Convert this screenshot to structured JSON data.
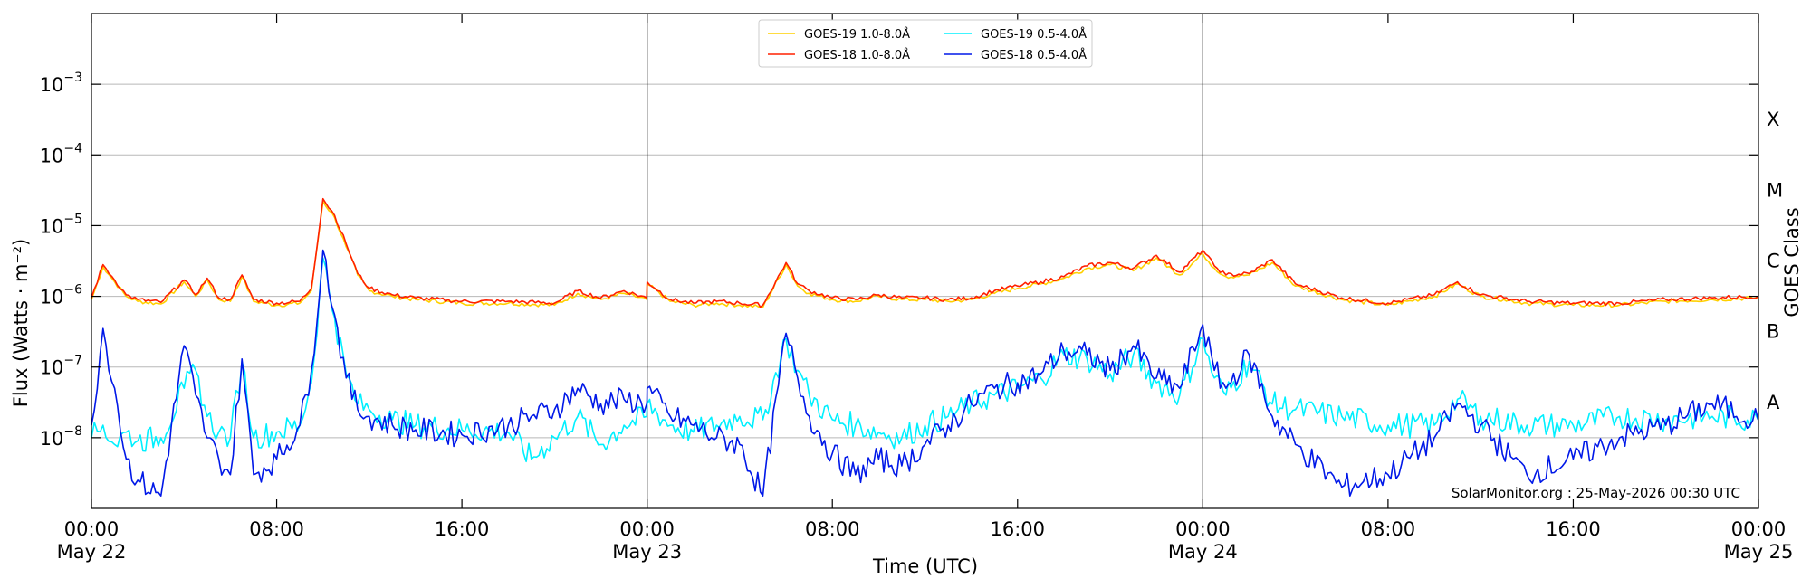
{
  "chart_data": {
    "type": "line",
    "xlabel": "Time (UTC)",
    "ylabel": "Flux (Watts · m⁻²)",
    "y2label": "GOES Class",
    "yscale": "log",
    "ylim": [
      1e-09,
      0.01
    ],
    "xlim": [
      "2026-05-22 00:00",
      "2026-05-25 00:00"
    ],
    "grid": "horizontal",
    "legend_position": "top-center",
    "credit": "SolarMonitor.org : 25-May-2026 00:30 UTC",
    "day_boundaries": [
      "2026-05-23 00:00",
      "2026-05-24 00:00"
    ],
    "y_ticks": [
      {
        "value": 1e-08,
        "base": "10",
        "exp": "−8"
      },
      {
        "value": 1e-07,
        "base": "10",
        "exp": "−7"
      },
      {
        "value": 1e-06,
        "base": "10",
        "exp": "−6"
      },
      {
        "value": 1e-05,
        "base": "10",
        "exp": "−5"
      },
      {
        "value": 0.0001,
        "base": "10",
        "exp": "−4"
      },
      {
        "value": 0.001,
        "base": "10",
        "exp": "−3"
      }
    ],
    "x_ticks": [
      {
        "time": "2026-05-22 00:00",
        "label1": "00:00",
        "label2": "May 22"
      },
      {
        "time": "2026-05-22 08:00",
        "label1": "08:00",
        "label2": ""
      },
      {
        "time": "2026-05-22 16:00",
        "label1": "16:00",
        "label2": ""
      },
      {
        "time": "2026-05-23 00:00",
        "label1": "00:00",
        "label2": "May 23"
      },
      {
        "time": "2026-05-23 08:00",
        "label1": "08:00",
        "label2": ""
      },
      {
        "time": "2026-05-23 16:00",
        "label1": "16:00",
        "label2": ""
      },
      {
        "time": "2026-05-24 00:00",
        "label1": "00:00",
        "label2": "May 24"
      },
      {
        "time": "2026-05-24 08:00",
        "label1": "08:00",
        "label2": ""
      },
      {
        "time": "2026-05-24 16:00",
        "label1": "16:00",
        "label2": ""
      },
      {
        "time": "2026-05-25 00:00",
        "label1": "00:00",
        "label2": "May 25"
      }
    ],
    "class_labels": [
      {
        "label": "A",
        "value": 3.16e-08
      },
      {
        "label": "B",
        "value": 3.16e-07
      },
      {
        "label": "C",
        "value": 3.16e-06
      },
      {
        "label": "M",
        "value": 3.16e-05
      },
      {
        "label": "X",
        "value": 0.000316
      }
    ],
    "series": [
      {
        "name": "GOES-19 1.0-8.0Å",
        "color": "#ffd000",
        "x": [
          "2026-05-22 00:00",
          "2026-05-22 00:30",
          "2026-05-22 01:00",
          "2026-05-22 01:30",
          "2026-05-22 02:00",
          "2026-05-22 03:00",
          "2026-05-22 04:00",
          "2026-05-22 04:30",
          "2026-05-22 05:00",
          "2026-05-22 05:30",
          "2026-05-22 06:00",
          "2026-05-22 06:30",
          "2026-05-22 07:00",
          "2026-05-22 08:00",
          "2026-05-22 09:00",
          "2026-05-22 09:30",
          "2026-05-22 10:00",
          "2026-05-22 10:30",
          "2026-05-22 11:00",
          "2026-05-22 11:30",
          "2026-05-22 12:00",
          "2026-05-22 13:00",
          "2026-05-22 14:00",
          "2026-05-22 16:00",
          "2026-05-22 18:00",
          "2026-05-22 20:00",
          "2026-05-22 21:00",
          "2026-05-22 22:00",
          "2026-05-22 23:00",
          "2026-05-22 23:59",
          "2026-05-23 00:00",
          "2026-05-23 01:00",
          "2026-05-23 02:00",
          "2026-05-23 03:00",
          "2026-05-23 04:00",
          "2026-05-23 05:00",
          "2026-05-23 06:00",
          "2026-05-23 06:30",
          "2026-05-23 07:00",
          "2026-05-23 08:00",
          "2026-05-23 09:00",
          "2026-05-23 10:00",
          "2026-05-23 11:00",
          "2026-05-23 12:00",
          "2026-05-23 13:00",
          "2026-05-23 14:00",
          "2026-05-23 15:00",
          "2026-05-23 16:00",
          "2026-05-23 17:00",
          "2026-05-23 18:00",
          "2026-05-23 19:00",
          "2026-05-23 20:00",
          "2026-05-23 21:00",
          "2026-05-23 22:00",
          "2026-05-23 23:00",
          "2026-05-24 00:00",
          "2026-05-24 00:30",
          "2026-05-24 01:00",
          "2026-05-24 02:00",
          "2026-05-24 03:00",
          "2026-05-24 04:00",
          "2026-05-24 06:00",
          "2026-05-24 08:00",
          "2026-05-24 10:00",
          "2026-05-24 11:00",
          "2026-05-24 12:00",
          "2026-05-24 13:00",
          "2026-05-24 14:00",
          "2026-05-24 16:00",
          "2026-05-24 18:00",
          "2026-05-24 20:00",
          "2026-05-24 22:00",
          "2026-05-24 23:59"
        ],
        "y": [
          9e-07,
          2.6e-06,
          1.6e-06,
          1e-06,
          8.5e-07,
          7.8e-07,
          1.6e-06,
          1e-06,
          1.7e-06,
          9e-07,
          8.5e-07,
          1.9e-06,
          8.5e-07,
          7.5e-07,
          8e-07,
          1.2e-06,
          2.2e-05,
          1.3e-05,
          5e-06,
          2e-06,
          1.2e-06,
          1e-06,
          9e-07,
          8e-07,
          8e-07,
          7.5e-07,
          1.1e-06,
          9e-07,
          1.1e-06,
          9e-07,
          1.5e-06,
          8.5e-07,
          7.5e-07,
          8e-07,
          7.5e-07,
          7e-07,
          2.8e-06,
          1.4e-06,
          1.1e-06,
          9e-07,
          8.5e-07,
          1e-06,
          9e-07,
          9e-07,
          8.5e-07,
          9e-07,
          1.1e-06,
          1.3e-06,
          1.5e-06,
          1.8e-06,
          2.5e-06,
          2.8e-06,
          2.3e-06,
          3.5e-06,
          2e-06,
          4e-06,
          2.5e-06,
          1.9e-06,
          2e-06,
          3e-06,
          1.4e-06,
          9e-07,
          7.5e-07,
          1e-06,
          1.5e-06,
          1e-06,
          9e-07,
          8e-07,
          7.5e-07,
          7.5e-07,
          8.5e-07,
          9e-07,
          9.5e-07
        ]
      },
      {
        "name": "GOES-18 1.0-8.0Å",
        "color": "#ff2000",
        "x": [
          "2026-05-22 00:00",
          "2026-05-22 00:30",
          "2026-05-22 01:00",
          "2026-05-22 01:30",
          "2026-05-22 02:00",
          "2026-05-22 03:00",
          "2026-05-22 04:00",
          "2026-05-22 04:30",
          "2026-05-22 05:00",
          "2026-05-22 05:30",
          "2026-05-22 06:00",
          "2026-05-22 06:30",
          "2026-05-22 07:00",
          "2026-05-22 08:00",
          "2026-05-22 09:00",
          "2026-05-22 09:30",
          "2026-05-22 10:00",
          "2026-05-22 10:30",
          "2026-05-22 11:00",
          "2026-05-22 11:30",
          "2026-05-22 12:00",
          "2026-05-22 13:00",
          "2026-05-22 14:00",
          "2026-05-22 16:00",
          "2026-05-22 18:00",
          "2026-05-22 20:00",
          "2026-05-22 21:00",
          "2026-05-22 22:00",
          "2026-05-22 23:00",
          "2026-05-22 23:59",
          "2026-05-23 00:00",
          "2026-05-23 01:00",
          "2026-05-23 02:00",
          "2026-05-23 03:00",
          "2026-05-23 04:00",
          "2026-05-23 05:00",
          "2026-05-23 06:00",
          "2026-05-23 06:30",
          "2026-05-23 07:00",
          "2026-05-23 08:00",
          "2026-05-23 09:00",
          "2026-05-23 10:00",
          "2026-05-23 11:00",
          "2026-05-23 12:00",
          "2026-05-23 13:00",
          "2026-05-23 14:00",
          "2026-05-23 15:00",
          "2026-05-23 16:00",
          "2026-05-23 17:00",
          "2026-05-23 18:00",
          "2026-05-23 19:00",
          "2026-05-23 20:00",
          "2026-05-23 21:00",
          "2026-05-23 22:00",
          "2026-05-23 23:00",
          "2026-05-24 00:00",
          "2026-05-24 00:30",
          "2026-05-24 01:00",
          "2026-05-24 02:00",
          "2026-05-24 03:00",
          "2026-05-24 04:00",
          "2026-05-24 06:00",
          "2026-05-24 08:00",
          "2026-05-24 10:00",
          "2026-05-24 11:00",
          "2026-05-24 12:00",
          "2026-05-24 13:00",
          "2026-05-24 14:00",
          "2026-05-24 16:00",
          "2026-05-24 18:00",
          "2026-05-24 20:00",
          "2026-05-24 22:00",
          "2026-05-24 23:59"
        ],
        "y": [
          9.5e-07,
          2.8e-06,
          1.7e-06,
          1.05e-06,
          9e-07,
          8.2e-07,
          1.7e-06,
          1.05e-06,
          1.8e-06,
          9.5e-07,
          9e-07,
          2e-06,
          9e-07,
          8e-07,
          8.5e-07,
          1.3e-06,
          2.4e-05,
          1.4e-05,
          5.5e-06,
          2.1e-06,
          1.3e-06,
          1.05e-06,
          9.5e-07,
          8.5e-07,
          8.5e-07,
          8e-07,
          1.2e-06,
          9.5e-07,
          1.2e-06,
          9.5e-07,
          1.6e-06,
          9e-07,
          8e-07,
          8.5e-07,
          8e-07,
          7.5e-07,
          3e-06,
          1.5e-06,
          1.2e-06,
          9.5e-07,
          9e-07,
          1.05e-06,
          9.5e-07,
          9.5e-07,
          9e-07,
          9.5e-07,
          1.2e-06,
          1.4e-06,
          1.6e-06,
          1.9e-06,
          2.7e-06,
          3e-06,
          2.5e-06,
          3.8e-06,
          2.2e-06,
          4.5e-06,
          2.7e-06,
          2e-06,
          2.1e-06,
          3.3e-06,
          1.5e-06,
          9.5e-07,
          8e-07,
          1.05e-06,
          1.6e-06,
          1.05e-06,
          9.5e-07,
          8.5e-07,
          8e-07,
          8e-07,
          9e-07,
          9.5e-07,
          1e-06
        ]
      },
      {
        "name": "GOES-19 0.5-4.0Å",
        "color": "#00f0ff",
        "x": [
          "2026-05-22 00:00",
          "2026-05-22 00:30",
          "2026-05-22 01:00",
          "2026-05-22 01:30",
          "2026-05-22 02:00",
          "2026-05-22 03:00",
          "2026-05-22 04:00",
          "2026-05-22 04:30",
          "2026-05-22 05:00",
          "2026-05-22 05:30",
          "2026-05-22 06:00",
          "2026-05-22 06:30",
          "2026-05-22 07:00",
          "2026-05-22 08:00",
          "2026-05-22 09:00",
          "2026-05-22 09:30",
          "2026-05-22 10:00",
          "2026-05-22 10:30",
          "2026-05-22 11:00",
          "2026-05-22 11:30",
          "2026-05-22 12:00",
          "2026-05-22 13:00",
          "2026-05-22 14:00",
          "2026-05-22 16:00",
          "2026-05-22 18:00",
          "2026-05-22 19:00",
          "2026-05-22 20:00",
          "2026-05-22 21:00",
          "2026-05-22 22:00",
          "2026-05-22 23:00",
          "2026-05-22 23:59",
          "2026-05-23 00:00",
          "2026-05-23 01:00",
          "2026-05-23 02:00",
          "2026-05-23 03:00",
          "2026-05-23 04:00",
          "2026-05-23 05:00",
          "2026-05-23 06:00",
          "2026-05-23 06:30",
          "2026-05-23 07:00",
          "2026-05-23 08:00",
          "2026-05-23 09:00",
          "2026-05-23 10:00",
          "2026-05-23 11:00",
          "2026-05-23 12:00",
          "2026-05-23 13:00",
          "2026-05-23 14:00",
          "2026-05-23 15:00",
          "2026-05-23 16:00",
          "2026-05-23 17:00",
          "2026-05-23 18:00",
          "2026-05-23 19:00",
          "2026-05-23 20:00",
          "2026-05-23 21:00",
          "2026-05-23 22:00",
          "2026-05-23 23:00",
          "2026-05-24 00:00",
          "2026-05-24 00:30",
          "2026-05-24 01:00",
          "2026-05-24 02:00",
          "2026-05-24 03:00",
          "2026-05-24 04:00",
          "2026-05-24 06:00",
          "2026-05-24 08:00",
          "2026-05-24 10:00",
          "2026-05-24 11:00",
          "2026-05-24 12:00",
          "2026-05-24 14:00",
          "2026-05-24 16:00",
          "2026-05-24 18:00",
          "2026-05-24 20:00",
          "2026-05-24 22:00",
          "2026-05-24 23:59"
        ],
        "y": [
          1e-08,
          1.5e-08,
          8e-09,
          1.2e-08,
          9e-09,
          1e-08,
          5e-08,
          9e-08,
          2e-08,
          1.2e-08,
          1e-08,
          1.2e-07,
          1e-08,
          1.2e-08,
          1.5e-08,
          6e-08,
          3.5e-06,
          5e-07,
          8e-08,
          3e-08,
          2.5e-08,
          1.8e-08,
          1.5e-08,
          1.3e-08,
          1.2e-08,
          5e-09,
          1e-08,
          2e-08,
          8e-09,
          1.5e-08,
          2e-08,
          3e-08,
          1.5e-08,
          1.2e-08,
          1.5e-08,
          2e-08,
          1.8e-08,
          2.5e-07,
          9e-08,
          4e-08,
          1.8e-08,
          1.5e-08,
          1.2e-08,
          1e-08,
          1.5e-08,
          2e-08,
          3e-08,
          4e-08,
          5e-08,
          7e-08,
          1.5e-07,
          1.3e-07,
          8e-08,
          1.5e-07,
          6e-08,
          4e-08,
          2.5e-07,
          7e-08,
          4e-08,
          1.2e-07,
          3e-08,
          2.5e-08,
          2e-08,
          1.5e-08,
          1.5e-08,
          3.5e-08,
          2e-08,
          1.5e-08,
          1.5e-08,
          2e-08,
          1.8e-08,
          2e-08,
          1.8e-08
        ]
      },
      {
        "name": "GOES-18 0.5-4.0Å",
        "color": "#0018e8",
        "x": [
          "2026-05-22 00:00",
          "2026-05-22 00:30",
          "2026-05-22 01:00",
          "2026-05-22 01:30",
          "2026-05-22 02:00",
          "2026-05-22 03:00",
          "2026-05-22 04:00",
          "2026-05-22 04:30",
          "2026-05-22 05:00",
          "2026-05-22 05:30",
          "2026-05-22 06:00",
          "2026-05-22 06:30",
          "2026-05-22 07:00",
          "2026-05-22 08:00",
          "2026-05-22 09:00",
          "2026-05-22 09:30",
          "2026-05-22 10:00",
          "2026-05-22 10:30",
          "2026-05-22 11:00",
          "2026-05-22 11:30",
          "2026-05-22 12:00",
          "2026-05-22 13:00",
          "2026-05-22 14:00",
          "2026-05-22 16:00",
          "2026-05-22 18:00",
          "2026-05-22 19:00",
          "2026-05-22 20:00",
          "2026-05-22 21:00",
          "2026-05-22 22:00",
          "2026-05-22 23:00",
          "2026-05-22 23:59",
          "2026-05-23 00:00",
          "2026-05-23 01:00",
          "2026-05-23 02:00",
          "2026-05-23 03:00",
          "2026-05-23 04:00",
          "2026-05-23 05:00",
          "2026-05-23 06:00",
          "2026-05-23 06:30",
          "2026-05-23 07:00",
          "2026-05-23 08:00",
          "2026-05-23 09:00",
          "2026-05-23 10:00",
          "2026-05-23 11:00",
          "2026-05-23 12:00",
          "2026-05-23 13:00",
          "2026-05-23 14:00",
          "2026-05-23 15:00",
          "2026-05-23 16:00",
          "2026-05-23 17:00",
          "2026-05-23 18:00",
          "2026-05-23 19:00",
          "2026-05-23 20:00",
          "2026-05-23 21:00",
          "2026-05-23 22:00",
          "2026-05-23 23:00",
          "2026-05-24 00:00",
          "2026-05-24 00:30",
          "2026-05-24 01:00",
          "2026-05-24 02:00",
          "2026-05-24 03:00",
          "2026-05-24 04:00",
          "2026-05-24 06:00",
          "2026-05-24 08:00",
          "2026-05-24 10:00",
          "2026-05-24 11:00",
          "2026-05-24 12:00",
          "2026-05-24 14:00",
          "2026-05-24 16:00",
          "2026-05-24 18:00",
          "2026-05-24 20:00",
          "2026-05-24 22:00",
          "2026-05-24 23:59"
        ],
        "y": [
          1.5e-08,
          3.5e-07,
          5e-08,
          5e-09,
          2.5e-09,
          1.5e-09,
          2e-07,
          4e-08,
          1e-08,
          5e-09,
          3e-09,
          1.3e-07,
          3e-09,
          5e-09,
          1.5e-08,
          9e-08,
          4.5e-06,
          5.5e-07,
          7e-08,
          2.5e-08,
          2e-08,
          1.5e-08,
          1.3e-08,
          1.1e-08,
          1.5e-08,
          2e-08,
          2.5e-08,
          5e-08,
          3e-08,
          3.5e-08,
          3e-08,
          5e-08,
          2e-08,
          1.5e-08,
          1e-08,
          8e-09,
          1.5e-09,
          3e-07,
          7e-08,
          2e-08,
          6e-09,
          3e-09,
          5e-09,
          4e-09,
          8e-09,
          1.5e-08,
          3e-08,
          5e-08,
          6e-08,
          8e-08,
          1.7e-07,
          1.5e-07,
          9e-08,
          2e-07,
          7e-08,
          5e-08,
          4e-07,
          9e-08,
          5e-08,
          1.5e-07,
          2e-08,
          8e-09,
          2e-09,
          3e-09,
          1e-08,
          3e-08,
          1.5e-08,
          3e-09,
          5e-09,
          1e-08,
          1.5e-08,
          3e-08,
          1.8e-08
        ]
      }
    ]
  }
}
